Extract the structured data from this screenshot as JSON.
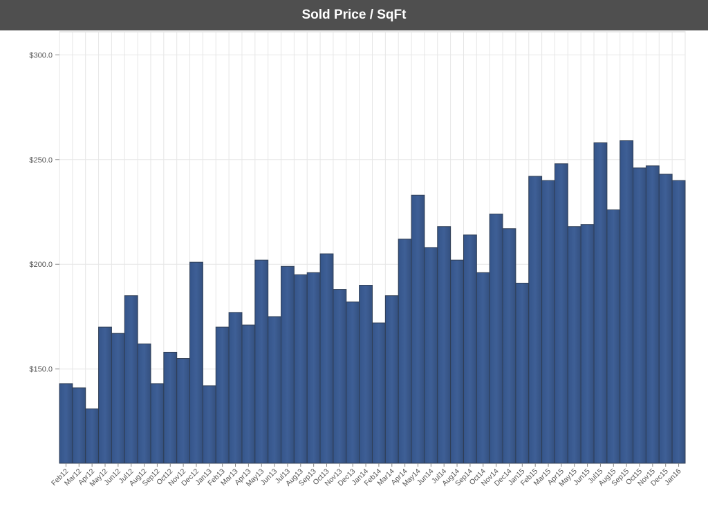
{
  "title": "Sold Price / SqFt",
  "colors": {
    "header_bg": "#4f4f4f",
    "header_text": "#ffffff",
    "bar_fill": "#3e5f96",
    "bar_stroke": "#2f3e55",
    "grid": "#e6e6e6",
    "axis_text": "#555555"
  },
  "chart_data": {
    "type": "bar",
    "title": "Sold Price / SqFt",
    "xlabel": "",
    "ylabel": "",
    "ylim": [
      105,
      311
    ],
    "yticks": [
      150,
      200,
      250,
      300
    ],
    "ytick_labels": [
      "$150.0",
      "$200.0",
      "$250.0",
      "$300.0"
    ],
    "grid": true,
    "legend": "none",
    "categories": [
      "Feb12",
      "Mar12",
      "Apr12",
      "May12",
      "Jun12",
      "Jul12",
      "Aug12",
      "Sep12",
      "Oct12",
      "Nov12",
      "Dec12",
      "Jan13",
      "Feb13",
      "Mar13",
      "Apr13",
      "May13",
      "Jun13",
      "Jul13",
      "Aug13",
      "Sep13",
      "Oct13",
      "Nov13",
      "Dec13",
      "Jan14",
      "Feb14",
      "Mar14",
      "Apr14",
      "May14",
      "Jun14",
      "Jul14",
      "Aug14",
      "Sep14",
      "Oct14",
      "Nov14",
      "Dec14",
      "Jan15",
      "Feb15",
      "Mar15",
      "Apr15",
      "May15",
      "Jun15",
      "Jul15",
      "Aug15",
      "Sep15",
      "Oct15",
      "Nov15",
      "Dec15",
      "Jan16"
    ],
    "values": [
      143,
      141,
      131,
      170,
      167,
      185,
      162,
      143,
      158,
      155,
      201,
      142,
      170,
      177,
      171,
      202,
      175,
      199,
      195,
      196,
      205,
      188,
      182,
      190,
      172,
      185,
      212,
      233,
      208,
      218,
      202,
      214,
      196,
      224,
      217,
      191,
      242,
      240,
      248,
      218,
      219,
      258,
      226,
      259,
      246,
      247,
      243,
      240
    ]
  }
}
